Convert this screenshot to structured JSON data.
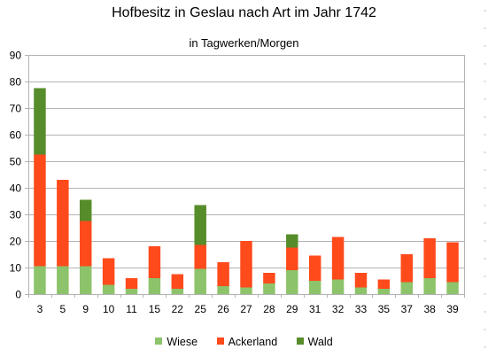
{
  "chart_data": {
    "type": "bar",
    "stacked": true,
    "title": "Hofbesitz in Geslau nach Art im Jahr 1742",
    "subtitle": "in Tagwerken/Morgen",
    "categories": [
      "3",
      "5",
      "9",
      "10",
      "11",
      "15",
      "22",
      "25",
      "26",
      "27",
      "28",
      "29",
      "31",
      "32",
      "33",
      "35",
      "37",
      "38",
      "39"
    ],
    "series": [
      {
        "name": "Wiese",
        "color": "#8dc36a",
        "values": [
          10.5,
          10.5,
          10.5,
          3.5,
          2.0,
          6.0,
          2.0,
          9.5,
          3.0,
          2.5,
          4.0,
          9.0,
          5.0,
          5.5,
          2.5,
          2.0,
          4.5,
          6.0,
          4.5
        ]
      },
      {
        "name": "Ackerland",
        "color": "#ff4a1c",
        "values": [
          42.0,
          32.5,
          17.0,
          10.0,
          4.0,
          12.0,
          5.5,
          9.0,
          9.0,
          17.5,
          4.0,
          8.5,
          9.5,
          16.0,
          5.5,
          3.5,
          10.5,
          15.0,
          15.0
        ]
      },
      {
        "name": "Wald",
        "color": "#578c2b",
        "values": [
          25.0,
          0,
          8.0,
          0,
          0,
          0,
          0,
          15.0,
          0,
          0,
          0,
          5.0,
          0,
          0,
          0,
          0,
          0,
          0,
          0
        ]
      }
    ],
    "ylim": [
      0,
      90
    ],
    "yticks": [
      0,
      10,
      20,
      30,
      40,
      50,
      60,
      70,
      80,
      90
    ],
    "grid": true,
    "legend_position": "bottom",
    "xlabel": "",
    "ylabel": ""
  }
}
